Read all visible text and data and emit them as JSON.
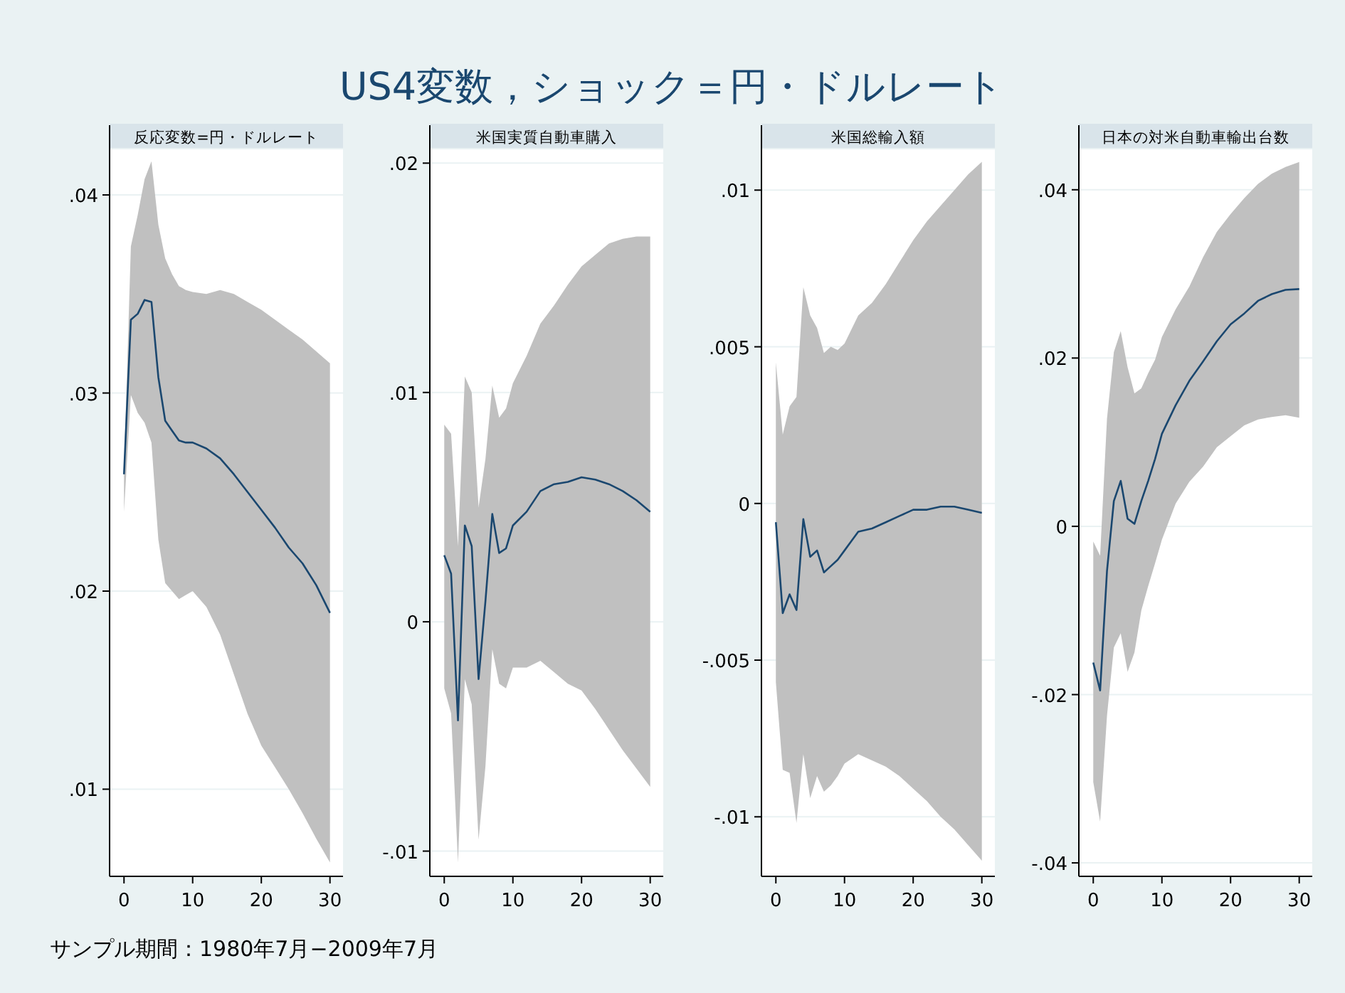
{
  "chart_data": [
    {
      "type": "other",
      "title": "US4変数，ショック＝円・ドルレート",
      "annotations": [
        "サンプル期間：1980年7月−2009年7月"
      ]
    },
    {
      "type": "line",
      "title": "反応変数=円・ドルレート",
      "x": [
        0,
        1,
        2,
        3,
        4,
        5,
        6,
        7,
        8,
        9,
        10,
        12,
        14,
        16,
        18,
        20,
        22,
        24,
        26,
        28,
        30
      ],
      "xlim": [
        -2.1,
        31.9
      ],
      "xticks": [
        0,
        10,
        20,
        30
      ],
      "ylim": [
        0.0056,
        0.0423
      ],
      "yticks": [
        {
          "value": 0.01,
          "label": ".01"
        },
        {
          "value": 0.02,
          "label": ".02"
        },
        {
          "value": 0.03,
          "label": ".03"
        },
        {
          "value": 0.04,
          "label": ".04"
        }
      ],
      "grid": "y",
      "series": [
        {
          "color": "#1a476f",
          "values": [
            0.0259,
            0.0337,
            0.034,
            0.0347,
            0.0346,
            0.0308,
            0.0286,
            0.0281,
            0.0276,
            0.0275,
            0.0275,
            0.0272,
            0.0267,
            0.0259,
            0.025,
            0.0241,
            0.0232,
            0.0222,
            0.0214,
            0.0203,
            0.0189
          ],
          "upper": [
            0.0262,
            0.0374,
            0.039,
            0.0408,
            0.0417,
            0.0385,
            0.0368,
            0.036,
            0.0354,
            0.0352,
            0.0351,
            0.035,
            0.0352,
            0.035,
            0.0346,
            0.0342,
            0.0337,
            0.0332,
            0.0327,
            0.0321,
            0.0315
          ],
          "lower": [
            0.024,
            0.0299,
            0.029,
            0.0285,
            0.0275,
            0.0226,
            0.0204,
            0.02,
            0.0196,
            0.0198,
            0.02,
            0.0192,
            0.0178,
            0.0158,
            0.0138,
            0.0122,
            0.0111,
            0.01,
            0.0088,
            0.0075,
            0.0063
          ]
        }
      ]
    },
    {
      "type": "line",
      "title": "米国実質自動車購入",
      "x": [
        0,
        1,
        2,
        3,
        4,
        5,
        6,
        7,
        8,
        9,
        10,
        12,
        14,
        16,
        18,
        20,
        22,
        24,
        26,
        28,
        30
      ],
      "xlim": [
        -2.1,
        31.9
      ],
      "xticks": [
        0,
        10,
        20,
        30
      ],
      "ylim": [
        -0.0111,
        0.0206
      ],
      "yticks": [
        {
          "value": -0.01,
          "label": "-.01"
        },
        {
          "value": 0,
          "label": "0"
        },
        {
          "value": 0.01,
          "label": ".01"
        },
        {
          "value": 0.02,
          "label": ".02"
        }
      ],
      "grid": "y",
      "series": [
        {
          "color": "#1a476f",
          "values": [
            0.0029,
            0.0021,
            -0.0043,
            0.0042,
            0.0033,
            -0.0025,
            0.0009,
            0.0047,
            0.003,
            0.0032,
            0.0042,
            0.0048,
            0.0057,
            0.006,
            0.0061,
            0.0063,
            0.0062,
            0.006,
            0.0057,
            0.0053,
            0.0048
          ],
          "upper": [
            0.0086,
            0.0082,
            0.0033,
            0.0107,
            0.01,
            0.005,
            0.0071,
            0.0103,
            0.0089,
            0.0093,
            0.0104,
            0.0116,
            0.013,
            0.0138,
            0.0147,
            0.0155,
            0.016,
            0.0165,
            0.0167,
            0.0168,
            0.0168
          ],
          "lower": [
            -0.0029,
            -0.004,
            -0.0105,
            -0.0025,
            -0.0036,
            -0.0095,
            -0.0063,
            -0.0012,
            -0.0027,
            -0.0029,
            -0.002,
            -0.002,
            -0.0017,
            -0.0022,
            -0.0027,
            -0.003,
            -0.0038,
            -0.0047,
            -0.0056,
            -0.0064,
            -0.0072
          ]
        }
      ]
    },
    {
      "type": "line",
      "title": "米国総輸入額",
      "x": [
        0,
        1,
        2,
        3,
        4,
        5,
        6,
        7,
        8,
        9,
        10,
        12,
        14,
        16,
        18,
        20,
        22,
        24,
        26,
        28,
        30
      ],
      "xlim": [
        -2.1,
        31.9
      ],
      "xticks": [
        0,
        10,
        20,
        30
      ],
      "ylim": [
        -0.0119,
        0.0113
      ],
      "yticks": [
        {
          "value": -0.01,
          "label": "-.01"
        },
        {
          "value": -0.005,
          "label": "-.005"
        },
        {
          "value": 0,
          "label": "0"
        },
        {
          "value": 0.005,
          "label": ".005"
        },
        {
          "value": 0.01,
          "label": ".01"
        }
      ],
      "grid": "y",
      "series": [
        {
          "color": "#1a476f",
          "values": [
            -0.0006,
            -0.0035,
            -0.0029,
            -0.0034,
            -0.0005,
            -0.0017,
            -0.0015,
            -0.0022,
            -0.002,
            -0.0018,
            -0.0015,
            -0.0009,
            -0.0008,
            -0.0006,
            -0.0004,
            -0.0002,
            -0.0002,
            -0.0001,
            -0.0001,
            -0.0002,
            -0.0003
          ],
          "upper": [
            0.0045,
            0.0022,
            0.0031,
            0.0034,
            0.0069,
            0.006,
            0.0056,
            0.0048,
            0.005,
            0.0049,
            0.0051,
            0.006,
            0.0064,
            0.007,
            0.0077,
            0.0084,
            0.009,
            0.0095,
            0.01,
            0.0105,
            0.0109
          ],
          "lower": [
            -0.0057,
            -0.0085,
            -0.0086,
            -0.0102,
            -0.008,
            -0.0094,
            -0.0087,
            -0.0092,
            -0.009,
            -0.0087,
            -0.0083,
            -0.008,
            -0.0082,
            -0.0084,
            -0.0087,
            -0.0091,
            -0.0095,
            -0.01,
            -0.0104,
            -0.0109,
            -0.0114
          ]
        }
      ]
    },
    {
      "type": "line",
      "title": "日本の対米自動車輸出台数",
      "x": [
        0,
        1,
        2,
        3,
        4,
        5,
        6,
        7,
        8,
        9,
        10,
        12,
        14,
        16,
        18,
        20,
        22,
        24,
        26,
        28,
        30
      ],
      "xlim": [
        -2.1,
        31.9
      ],
      "xticks": [
        0,
        10,
        20,
        30
      ],
      "ylim": [
        -0.0416,
        0.0448
      ],
      "yticks": [
        {
          "value": -0.04,
          "label": "-.04"
        },
        {
          "value": -0.02,
          "label": "-.02"
        },
        {
          "value": 0,
          "label": "0"
        },
        {
          "value": 0.02,
          "label": ".02"
        },
        {
          "value": 0.04,
          "label": ".04"
        }
      ],
      "grid": "y",
      "series": [
        {
          "color": "#1a476f",
          "values": [
            -0.0162,
            -0.0195,
            -0.0053,
            0.003,
            0.0054,
            0.0009,
            0.0003,
            0.003,
            0.0054,
            0.008,
            0.011,
            0.0144,
            0.0173,
            0.0196,
            0.022,
            0.024,
            0.0253,
            0.0268,
            0.0276,
            0.0281,
            0.0282
          ],
          "upper": [
            -0.0018,
            -0.0035,
            0.0128,
            0.0207,
            0.0232,
            0.0189,
            0.0158,
            0.0164,
            0.0182,
            0.0198,
            0.0225,
            0.0258,
            0.0285,
            0.032,
            0.035,
            0.0371,
            0.039,
            0.0407,
            0.0419,
            0.0427,
            0.0433
          ],
          "lower": [
            -0.0304,
            -0.0351,
            -0.0225,
            -0.0144,
            -0.0127,
            -0.0173,
            -0.015,
            -0.01,
            -0.0071,
            -0.0044,
            -0.0016,
            0.0027,
            0.0053,
            0.0071,
            0.0094,
            0.0107,
            0.012,
            0.0127,
            0.013,
            0.0132,
            0.0129
          ]
        }
      ]
    }
  ]
}
